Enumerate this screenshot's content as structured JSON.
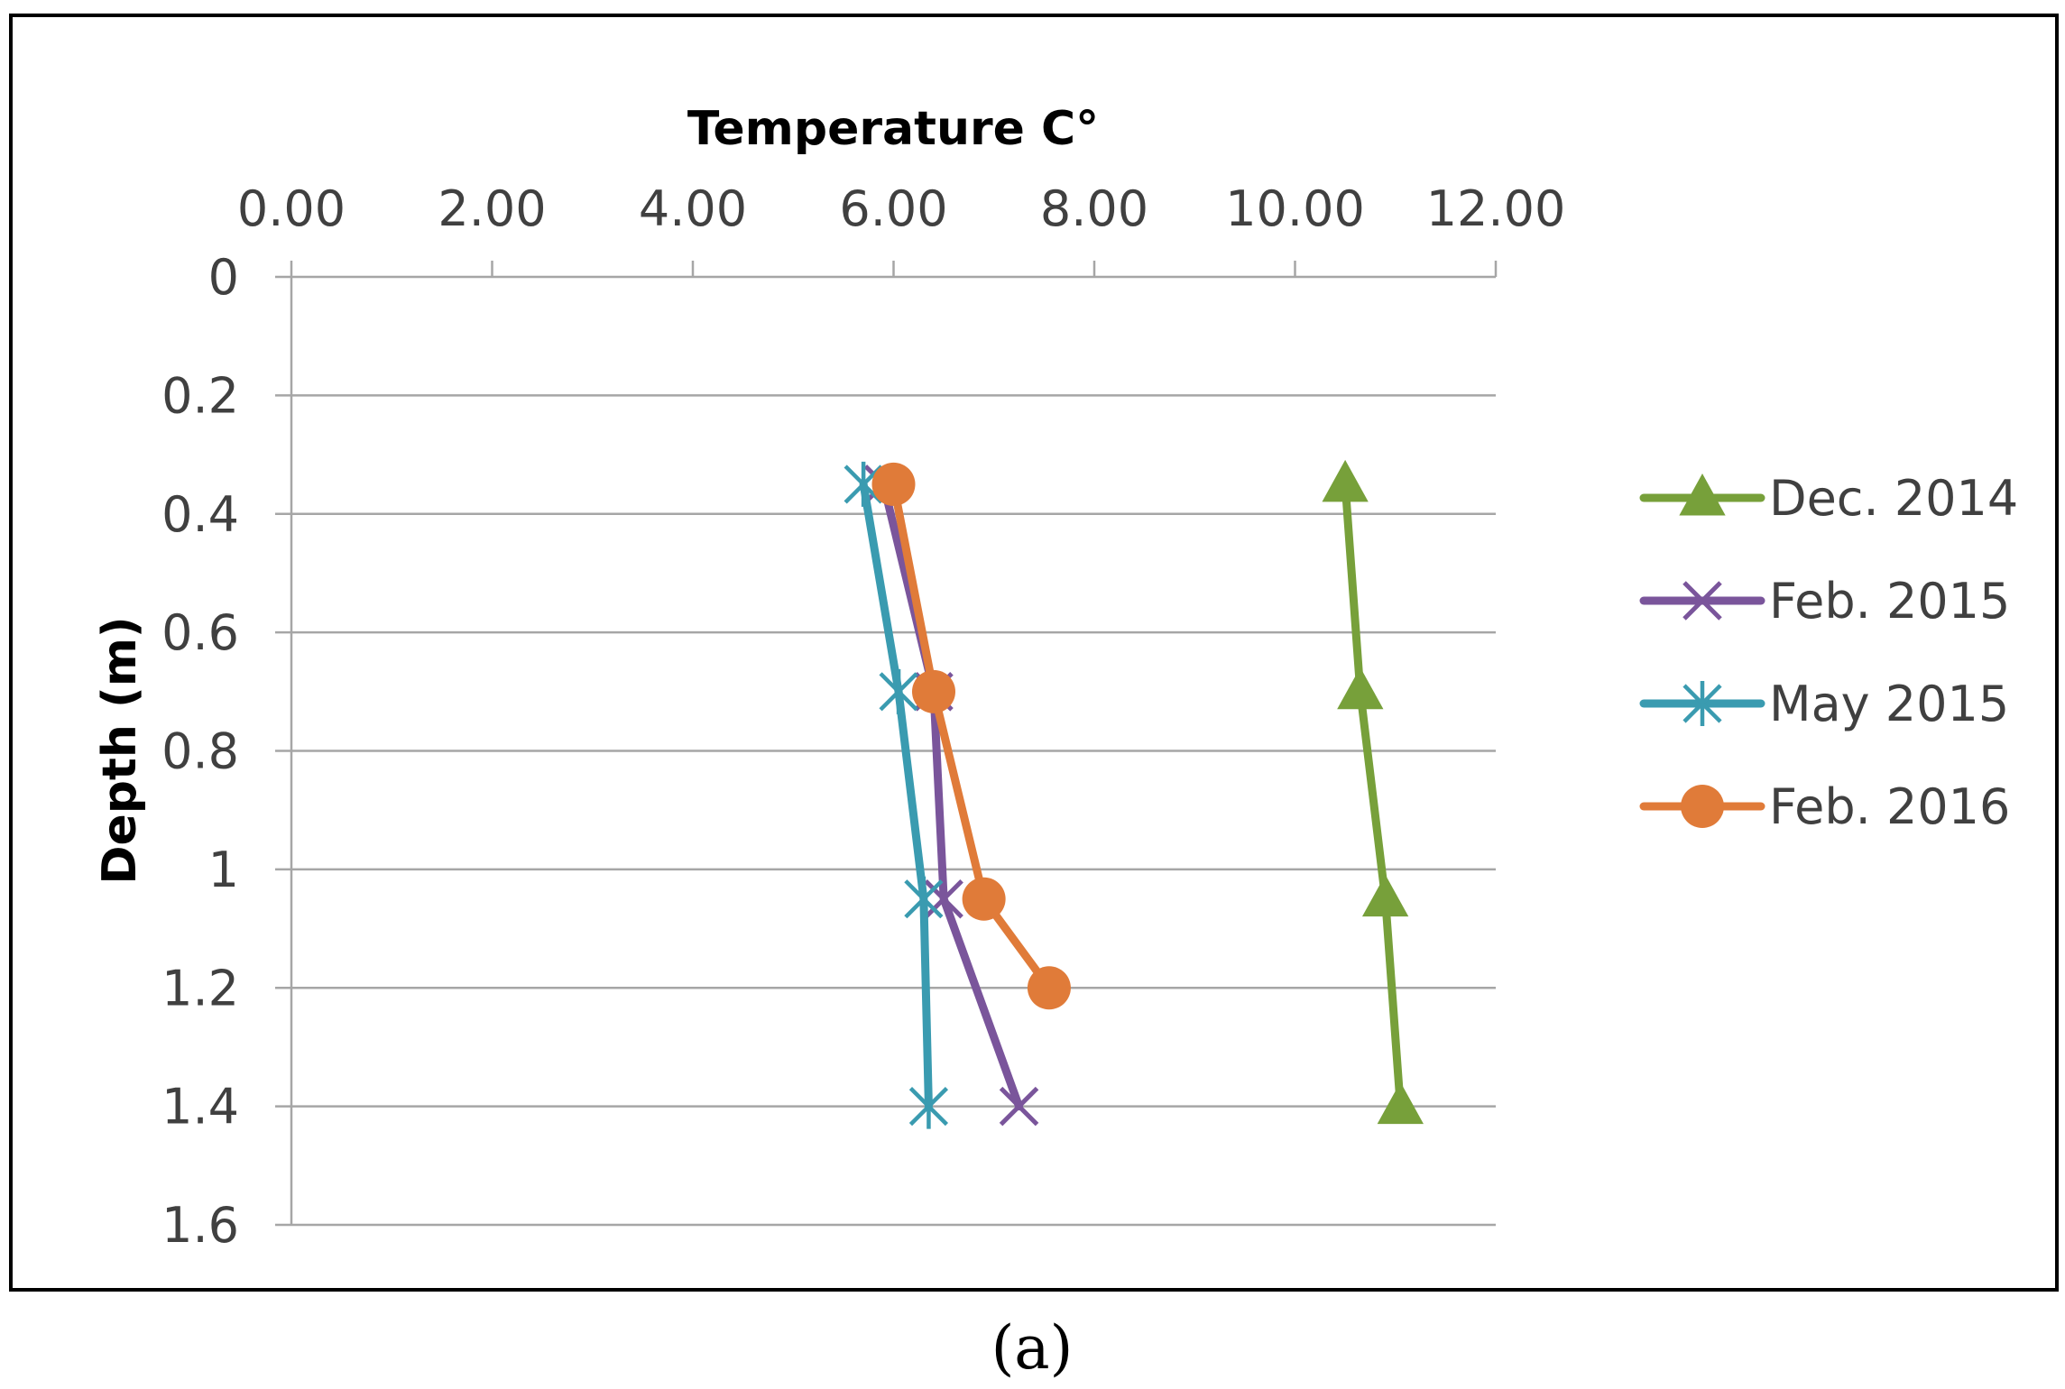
{
  "chart_data": {
    "type": "line",
    "caption": "(a)",
    "xlabel": "Temperature C°",
    "ylabel": "Depth (m)",
    "x_axis_position": "top",
    "y_axis_reversed": true,
    "xlim": [
      0,
      12
    ],
    "ylim": [
      0,
      1.6
    ],
    "x_ticks": [
      "0.00",
      "2.00",
      "4.00",
      "6.00",
      "8.00",
      "10.00",
      "12.00"
    ],
    "x_tick_values": [
      0,
      2,
      4,
      6,
      8,
      10,
      12
    ],
    "y_ticks": [
      "0",
      "0.2",
      "0.4",
      "0.6",
      "0.8",
      "1",
      "1.2",
      "1.4",
      "1.6"
    ],
    "y_tick_values": [
      0,
      0.2,
      0.4,
      0.6,
      0.8,
      1.0,
      1.2,
      1.4,
      1.6
    ],
    "grid": "horizontal",
    "legend_position": "right",
    "series": [
      {
        "name": "Dec. 2014",
        "color": "#77a03a",
        "marker": "triangle",
        "points": [
          {
            "x": 10.5,
            "y": 0.35
          },
          {
            "x": 10.65,
            "y": 0.7
          },
          {
            "x": 10.9,
            "y": 1.05
          },
          {
            "x": 11.05,
            "y": 1.4
          }
        ]
      },
      {
        "name": "Feb. 2015",
        "color": "#7a559b",
        "marker": "x",
        "points": [
          {
            "x": 5.9,
            "y": 0.35
          },
          {
            "x": 6.4,
            "y": 0.7
          },
          {
            "x": 6.5,
            "y": 1.05
          },
          {
            "x": 7.25,
            "y": 1.4
          }
        ]
      },
      {
        "name": "May 2015",
        "color": "#3a9bb0",
        "marker": "asterisk",
        "points": [
          {
            "x": 5.7,
            "y": 0.35
          },
          {
            "x": 6.05,
            "y": 0.7
          },
          {
            "x": 6.3,
            "y": 1.05
          },
          {
            "x": 6.35,
            "y": 1.4
          }
        ]
      },
      {
        "name": "Feb. 2016",
        "color": "#e07b39",
        "marker": "circle",
        "points": [
          {
            "x": 6.0,
            "y": 0.35
          },
          {
            "x": 6.4,
            "y": 0.7
          },
          {
            "x": 6.9,
            "y": 1.05
          },
          {
            "x": 7.55,
            "y": 1.2
          }
        ]
      }
    ]
  }
}
